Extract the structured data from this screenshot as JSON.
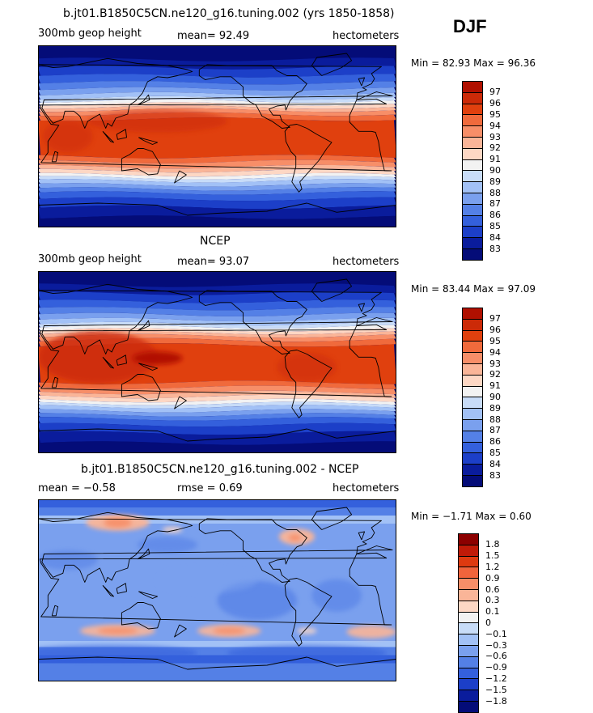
{
  "season": "DJF",
  "chart_data": [
    {
      "type": "heatmap",
      "title": "b.jt01.B1850C5CN.ne120_g16.tuning.002 (yrs 1850-1858)",
      "variable": "300mb geop height",
      "stat_text": "mean=  92.49",
      "units": "hectometers",
      "minmax_text": "Min =  82.93 Max =  96.36",
      "min": 82.93,
      "max": 96.36,
      "mean": 92.49,
      "levels": [
        "97",
        "96",
        "95",
        "94",
        "93",
        "92",
        "91",
        "90",
        "89",
        "88",
        "87",
        "86",
        "85",
        "84",
        "83"
      ],
      "colors": [
        "#b01000",
        "#cc2a08",
        "#e0400e",
        "#f06a3c",
        "#f78e68",
        "#fab598",
        "#fdd7c4",
        "#f2f2f2",
        "#c8dcf8",
        "#a2c1f6",
        "#7aa0ee",
        "#5480e6",
        "#3460dc",
        "#1c3fc8",
        "#0a1c9c",
        "#040c78"
      ]
    },
    {
      "type": "heatmap",
      "title": "NCEP",
      "variable": "300mb geop height",
      "stat_text": "mean=  93.07",
      "units": "hectometers",
      "minmax_text": "Min =  83.44 Max =  97.09",
      "min": 83.44,
      "max": 97.09,
      "mean": 93.07,
      "levels": [
        "97",
        "96",
        "95",
        "94",
        "93",
        "92",
        "91",
        "90",
        "89",
        "88",
        "87",
        "86",
        "85",
        "84",
        "83"
      ],
      "colors": [
        "#b01000",
        "#cc2a08",
        "#e0400e",
        "#f06a3c",
        "#f78e68",
        "#fab598",
        "#fdd7c4",
        "#f2f2f2",
        "#c8dcf8",
        "#a2c1f6",
        "#7aa0ee",
        "#5480e6",
        "#3460dc",
        "#1c3fc8",
        "#0a1c9c",
        "#040c78"
      ]
    },
    {
      "type": "heatmap",
      "title": "b.jt01.B1850C5CN.ne120_g16.tuning.002 - NCEP",
      "mean_text": "mean =  −0.58",
      "rmse_text": "rmse =    0.69",
      "units": "hectometers",
      "minmax_text": "Min =  −1.71 Max =   0.60",
      "min": -1.71,
      "max": 0.6,
      "mean": -0.58,
      "rmse": 0.69,
      "levels": [
        "1.8",
        "1.5",
        "1.2",
        "0.9",
        "0.6",
        "0.3",
        "0.1",
        "0",
        "−0.1",
        "−0.3",
        "−0.6",
        "−0.9",
        "−1.2",
        "−1.5",
        "−1.8"
      ],
      "colors": [
        "#8c0000",
        "#c01a08",
        "#de3a10",
        "#f0643c",
        "#f78e68",
        "#fab598",
        "#fdd7c4",
        "#f2f2f2",
        "#c8dcf8",
        "#a2c1f6",
        "#7aa0ee",
        "#5480e6",
        "#3460dc",
        "#1c3fc8",
        "#0a1c9c",
        "#040c78"
      ]
    }
  ]
}
